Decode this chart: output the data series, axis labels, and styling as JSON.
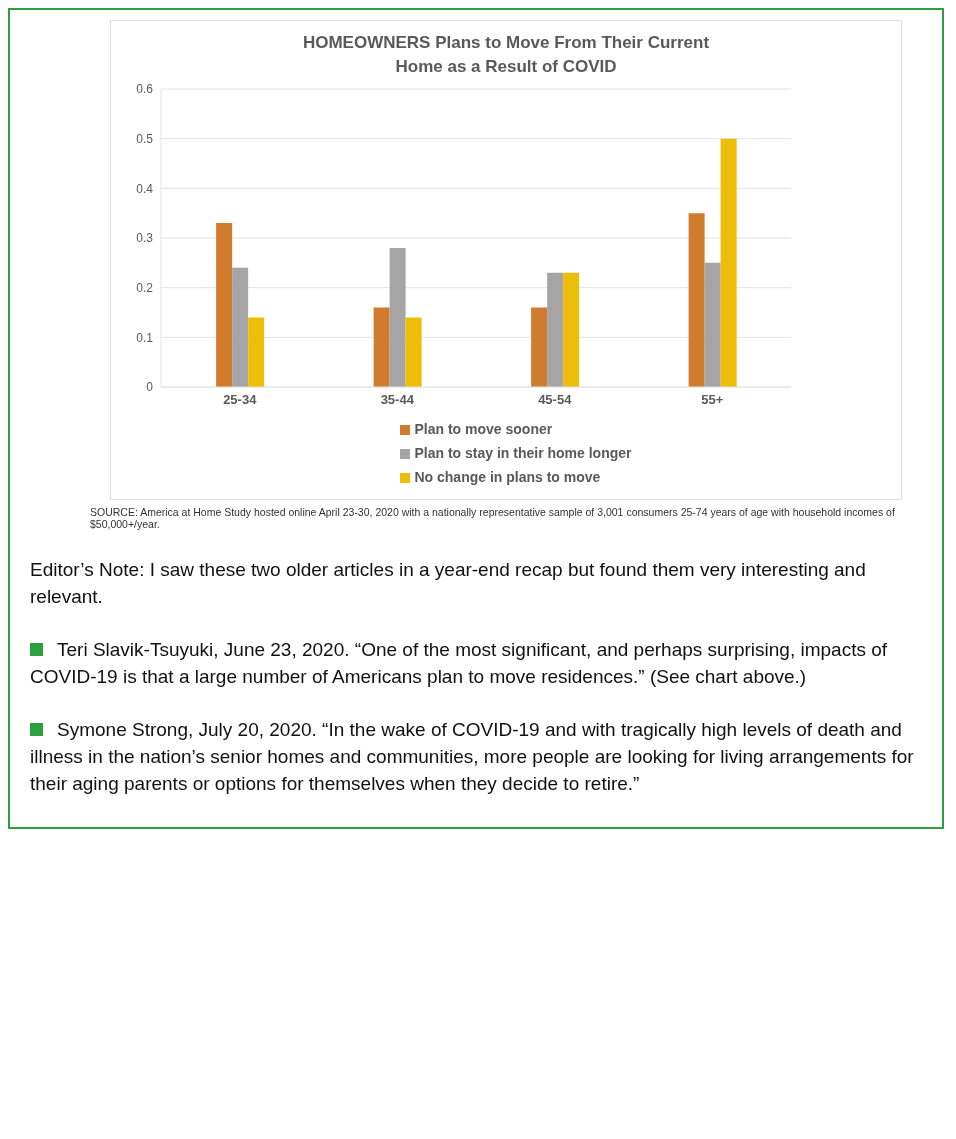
{
  "chart_data": {
    "type": "bar",
    "title": "HOMEOWNERS Plans to Move From Their Current Home as a Result of COVID",
    "categories": [
      "25-34",
      "35-44",
      "45-54",
      "55+"
    ],
    "series": [
      {
        "name": "Plan to move sooner",
        "color": "#d07c2e",
        "values": [
          0.33,
          0.16,
          0.16,
          0.35
        ]
      },
      {
        "name": "Plan to stay in their home longer",
        "color": "#a5a5a5",
        "values": [
          0.24,
          0.28,
          0.23,
          0.25
        ]
      },
      {
        "name": "No change in plans to move",
        "color": "#edbd0a",
        "values": [
          0.14,
          0.14,
          0.23,
          0.5
        ]
      }
    ],
    "ylim": [
      0,
      0.6
    ],
    "yticks": [
      0,
      0.1,
      0.2,
      0.3,
      0.4,
      0.5,
      0.6
    ],
    "grid": "y",
    "legend": "bottom",
    "annotations": [
      "SOURCE: America at Home Study hosted online April 23-30, 2020 with a nationally representative sample of 3,001 consumers 25-74 years of age with household incomes of $50,000+/year.",
      "Editor’s Note: I saw these two older articles in a year-end recap but found them very interesting and relevant.",
      "Teri Slavik-Tsuyuki, June 23, 2020. “One of the most significant, and perhaps surprising, impacts of COVID-19 is that a large number of Americans plan to move residences.” (See chart above.)",
      "Symone Strong, July 20, 2020. “In the wake of COVID-19 and with tragically high levels of death and illness in the nation’s senior homes and communities, more people are looking for living arrangements for their aging parents or options for themselves when they decide to retire.”"
    ]
  }
}
